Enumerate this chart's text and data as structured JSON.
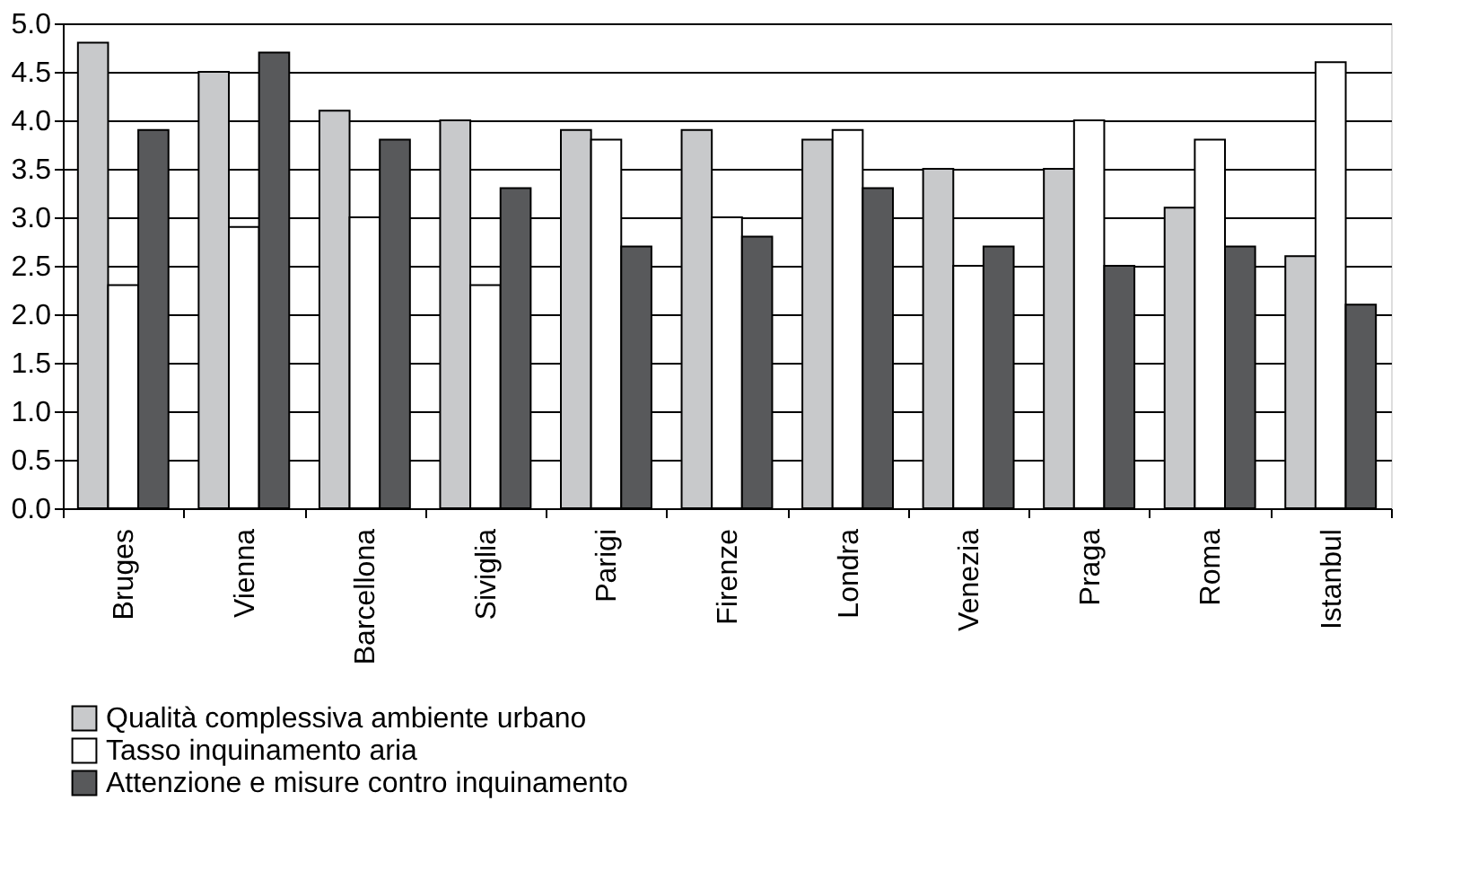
{
  "chart_data": {
    "type": "bar",
    "categories": [
      "Bruges",
      "Vienna",
      "Barcellona",
      "Siviglia",
      "Parigi",
      "Firenze",
      "Londra",
      "Venezia",
      "Praga",
      "Roma",
      "Istanbul"
    ],
    "series": [
      {
        "name": "Qualità complessiva ambiente urbano",
        "color": "#c8c9cb",
        "values": [
          4.8,
          4.5,
          4.1,
          4.0,
          3.9,
          3.9,
          3.8,
          3.5,
          3.5,
          3.1,
          2.6
        ]
      },
      {
        "name": "Tasso  inquinamento aria",
        "color": "#ffffff",
        "values": [
          2.3,
          2.9,
          3.0,
          2.3,
          3.8,
          3.0,
          3.9,
          2.5,
          4.0,
          3.8,
          4.6
        ]
      },
      {
        "name": "Attenzione e misure contro inquinamento",
        "color": "#58595b",
        "values": [
          3.9,
          4.7,
          3.8,
          3.3,
          2.7,
          2.8,
          3.3,
          2.7,
          2.5,
          2.7,
          2.1
        ]
      }
    ],
    "ylim": [
      0,
      5
    ],
    "yticks": [
      {
        "value": 0,
        "label": "0.0"
      },
      {
        "value": 0.5,
        "label": "0.5"
      },
      {
        "value": 1,
        "label": "1.0"
      },
      {
        "value": 1.5,
        "label": "1.5"
      },
      {
        "value": 2,
        "label": "2.0"
      },
      {
        "value": 2.5,
        "label": "2.5"
      },
      {
        "value": 3,
        "label": "3.0"
      },
      {
        "value": 3.5,
        "label": "3.5"
      },
      {
        "value": 4,
        "label": "4.0"
      },
      {
        "value": 4.5,
        "label": "4.5"
      },
      {
        "value": 5,
        "label": "5.0"
      }
    ],
    "grid": "y",
    "legend": "bottom"
  }
}
